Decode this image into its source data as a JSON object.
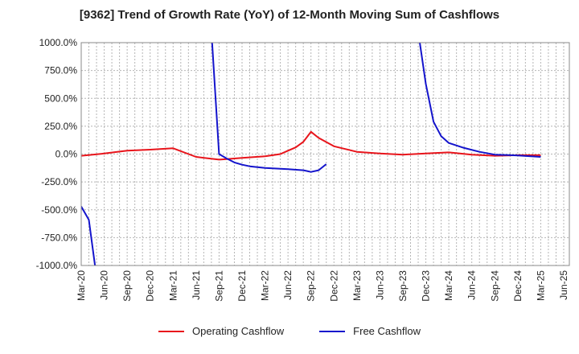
{
  "chart_data": {
    "type": "line",
    "title": "[9362]  Trend of Growth Rate (YoY) of 12-Month Moving Sum of Cashflows",
    "xlabel": "",
    "ylabel": "",
    "ylim": [
      -1000,
      1000
    ],
    "y_ticks": [
      "1000.0%",
      "750.0%",
      "500.0%",
      "250.0%",
      "0.0%",
      "-250.0%",
      "-500.0%",
      "-750.0%",
      "-1000.0%"
    ],
    "y_tick_values": [
      1000,
      750,
      500,
      250,
      0,
      -250,
      -500,
      -750,
      -1000
    ],
    "x_ticks": [
      "Mar-20",
      "Jun-20",
      "Sep-20",
      "Dec-20",
      "Mar-21",
      "Jun-21",
      "Sep-21",
      "Dec-21",
      "Mar-22",
      "Jun-22",
      "Sep-22",
      "Dec-22",
      "Mar-23",
      "Jun-23",
      "Sep-23",
      "Dec-23",
      "Mar-24",
      "Jun-24",
      "Sep-24",
      "Dec-24",
      "Mar-25",
      "Jun-25"
    ],
    "grid": true,
    "legend_position": "bottom",
    "series": [
      {
        "name": "Operating Cashflow",
        "color": "#e8141b",
        "points": [
          [
            "Mar-20",
            -15
          ],
          [
            "Jun-20",
            5
          ],
          [
            "Sep-20",
            30
          ],
          [
            "Dec-20",
            40
          ],
          [
            "Mar-21",
            52
          ],
          [
            "Jun-21",
            -25
          ],
          [
            "Sep-21",
            -50
          ],
          [
            "Oct-21",
            -45
          ],
          [
            "Dec-21",
            -35
          ],
          [
            "Mar-22",
            -20
          ],
          [
            "May-22",
            0
          ],
          [
            "Jun-22",
            30
          ],
          [
            "Jul-22",
            60
          ],
          [
            "Aug-22",
            110
          ],
          [
            "Sep-22",
            200
          ],
          [
            "Oct-22",
            145
          ],
          [
            "Dec-22",
            70
          ],
          [
            "Mar-23",
            20
          ],
          [
            "Jun-23",
            5
          ],
          [
            "Sep-23",
            -5
          ],
          [
            "Dec-23",
            5
          ],
          [
            "Mar-24",
            15
          ],
          [
            "Jun-24",
            -5
          ],
          [
            "Sep-24",
            -15
          ],
          [
            "Dec-24",
            -10
          ],
          [
            "Mar-25",
            -10
          ]
        ]
      },
      {
        "name": "Free Cashflow",
        "color": "#1414cc",
        "points": [
          [
            "Mar-20",
            -470
          ],
          [
            "Apr-20",
            -590
          ],
          [
            "May-20",
            -1100
          ],
          null,
          [
            "Aug-21",
            1100
          ],
          [
            "Sep-21",
            0
          ],
          [
            "Oct-21",
            -40
          ],
          [
            "Nov-21",
            -75
          ],
          [
            "Dec-21",
            -95
          ],
          [
            "Jan-22",
            -110
          ],
          [
            "Mar-22",
            -125
          ],
          [
            "Jun-22",
            -135
          ],
          [
            "Aug-22",
            -145
          ],
          [
            "Sep-22",
            -160
          ],
          [
            "Oct-22",
            -145
          ],
          [
            "Nov-22",
            -90
          ],
          null,
          [
            "Nov-23",
            1100
          ],
          [
            "Dec-23",
            630
          ],
          [
            "Jan-24",
            290
          ],
          [
            "Feb-24",
            160
          ],
          [
            "Mar-24",
            100
          ],
          [
            "May-24",
            55
          ],
          [
            "Jul-24",
            20
          ],
          [
            "Sep-24",
            -5
          ],
          [
            "Dec-24",
            -12
          ],
          [
            "Mar-25",
            -25
          ]
        ]
      }
    ]
  }
}
